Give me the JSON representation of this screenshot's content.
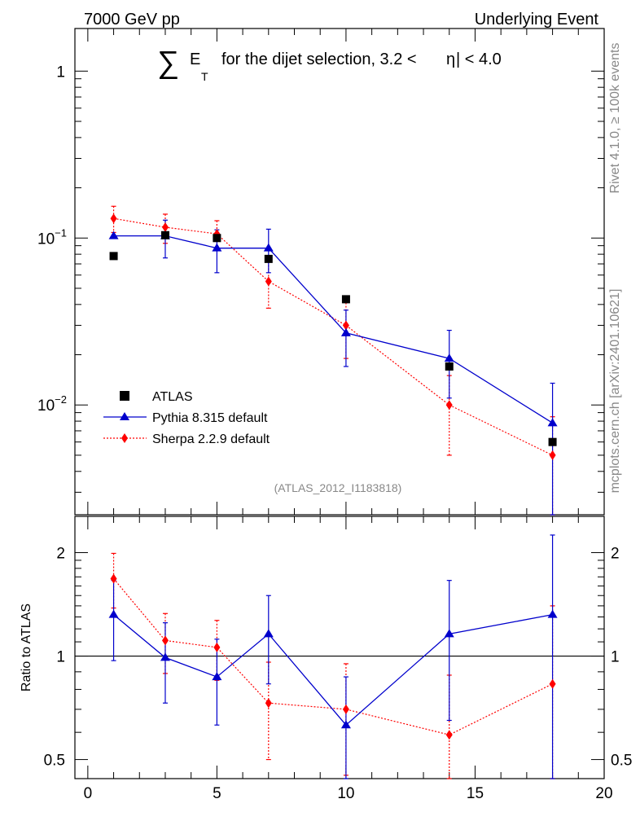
{
  "header": {
    "left": "7000 GeV pp",
    "right": "Underlying Event"
  },
  "side_labels": {
    "version": "Rivet 4.1.0, ≥ 100k events",
    "source": "mcplots.cern.ch [arXiv:2401.10621]"
  },
  "watermark": "(ATLAS_2012_I1183818)",
  "colors": {
    "atlas": "#000000",
    "pythia": "#0000cc",
    "sherpa": "#ff0000"
  },
  "chart_data": [
    {
      "type": "scatter",
      "panel": "main",
      "title": {
        "sigma": "∑",
        "e": "E",
        "sub": "T",
        "text": "for the dijet selection, 3.2 <",
        "eta": "η",
        "rest": "| < 4.0"
      },
      "yscale": "log",
      "ylim": [
        0.0022,
        1.8
      ],
      "xlim": [
        -0.5,
        20
      ],
      "ytick_labels": [
        {
          "value": 1,
          "base": "1",
          "exp": ""
        },
        {
          "value": 0.1,
          "base": "10",
          "exp": "−1"
        },
        {
          "value": 0.01,
          "base": "10",
          "exp": "−2"
        }
      ],
      "legend": {
        "position": "lower-left",
        "entries": [
          "ATLAS",
          "Pythia 8.315 default",
          "Sherpa 2.2.9 default"
        ]
      },
      "x": [
        1,
        3,
        5,
        7,
        10,
        14,
        18
      ],
      "series": [
        {
          "name": "ATLAS",
          "style": "square",
          "values": [
            0.078,
            0.104,
            0.1,
            0.075,
            0.043,
            0.017,
            0.006
          ]
        },
        {
          "name": "Pythia 8.315 default",
          "style": "triangle-solid",
          "values": [
            0.103,
            0.103,
            0.087,
            0.087,
            0.027,
            0.019,
            0.0078
          ],
          "err_low": [
            0.103,
            0.076,
            0.062,
            0.062,
            0.017,
            0.011,
            0.0022
          ],
          "err_high": [
            0.103,
            0.128,
            0.112,
            0.113,
            0.037,
            0.028,
            0.0135
          ]
        },
        {
          "name": "Sherpa 2.2.9 default",
          "style": "diamond-dotted",
          "values": [
            0.131,
            0.116,
            0.106,
            0.055,
            0.03,
            0.01,
            0.005
          ],
          "err_low": [
            0.108,
            0.093,
            0.085,
            0.038,
            0.019,
            0.005,
            0.0022
          ],
          "err_high": [
            0.155,
            0.139,
            0.127,
            0.072,
            0.041,
            0.015,
            0.0085
          ]
        }
      ]
    },
    {
      "type": "scatter",
      "panel": "ratio",
      "ylabel": "Ratio to ATLAS",
      "yscale": "log",
      "ylim": [
        0.44,
        2.55
      ],
      "xlim": [
        -0.5,
        20
      ],
      "yticks": [
        "0.5",
        "1",
        "2"
      ],
      "xticks": [
        "0",
        "5",
        "10",
        "15",
        "20"
      ],
      "reference_line": 1,
      "x": [
        1,
        3,
        5,
        7,
        10,
        14,
        18
      ],
      "series": [
        {
          "name": "Pythia 8.315 default",
          "values": [
            1.32,
            0.99,
            0.87,
            1.16,
            0.63,
            1.16,
            1.32
          ],
          "err_low": [
            0.97,
            0.73,
            0.63,
            0.83,
            0.4,
            0.65,
            0.37
          ],
          "err_high": [
            1.66,
            1.25,
            1.12,
            1.5,
            0.87,
            1.66,
            2.25
          ]
        },
        {
          "name": "Sherpa 2.2.9 default",
          "values": [
            1.68,
            1.11,
            1.06,
            0.73,
            0.7,
            0.59,
            0.83
          ],
          "err_low": [
            1.38,
            0.89,
            0.85,
            0.5,
            0.45,
            0.3,
            0.37
          ],
          "err_high": [
            1.99,
            1.33,
            1.27,
            0.96,
            0.95,
            0.88,
            1.4
          ]
        }
      ]
    }
  ]
}
